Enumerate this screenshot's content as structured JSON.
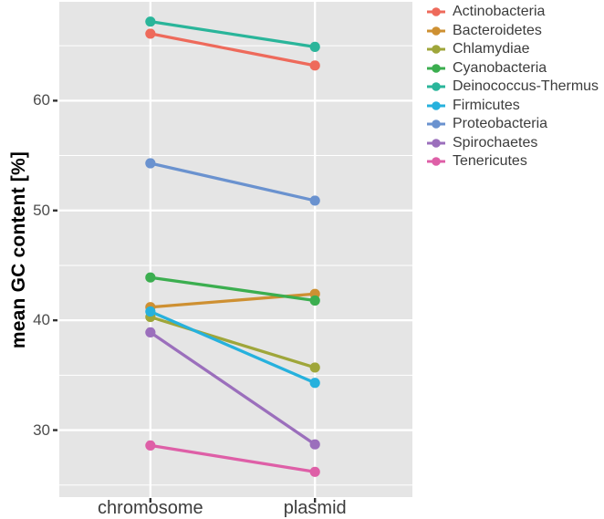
{
  "chart_data": {
    "type": "line",
    "title": "",
    "xlabel": "",
    "ylabel": "mean GC content [%]",
    "categories": [
      "chromosome",
      "plasmid"
    ],
    "series": [
      {
        "name": "Actinobacteria",
        "color": "#EE6A5B",
        "values": [
          66.1,
          63.2
        ]
      },
      {
        "name": "Bacteroidetes",
        "color": "#CE9032",
        "values": [
          41.2,
          42.4
        ]
      },
      {
        "name": "Chlamydiae",
        "color": "#9FA63A",
        "values": [
          40.3,
          35.7
        ]
      },
      {
        "name": "Cyanobacteria",
        "color": "#3BAE4F",
        "values": [
          43.9,
          41.8
        ]
      },
      {
        "name": "Deinococcus-Thermus",
        "color": "#2AB59A",
        "values": [
          67.2,
          64.9
        ]
      },
      {
        "name": "Firmicutes",
        "color": "#26B1DD",
        "values": [
          40.8,
          34.3
        ]
      },
      {
        "name": "Proteobacteria",
        "color": "#6A92CF",
        "values": [
          54.3,
          50.9
        ]
      },
      {
        "name": "Spirochaetes",
        "color": "#9B6FBC",
        "values": [
          38.9,
          28.7
        ]
      },
      {
        "name": "Tenericutes",
        "color": "#DE5FA7",
        "values": [
          28.6,
          26.2
        ]
      }
    ],
    "yticks": [
      30,
      40,
      50,
      60
    ],
    "minor_yticks": [
      25,
      35,
      45,
      55,
      65
    ],
    "ylim": [
      23.9,
      69.0
    ],
    "grid": "on",
    "legend_position": "right",
    "panel_bg": "#E5E5E5",
    "grid_color": "#FFFFFF",
    "tick_mark_color": "#333333"
  }
}
